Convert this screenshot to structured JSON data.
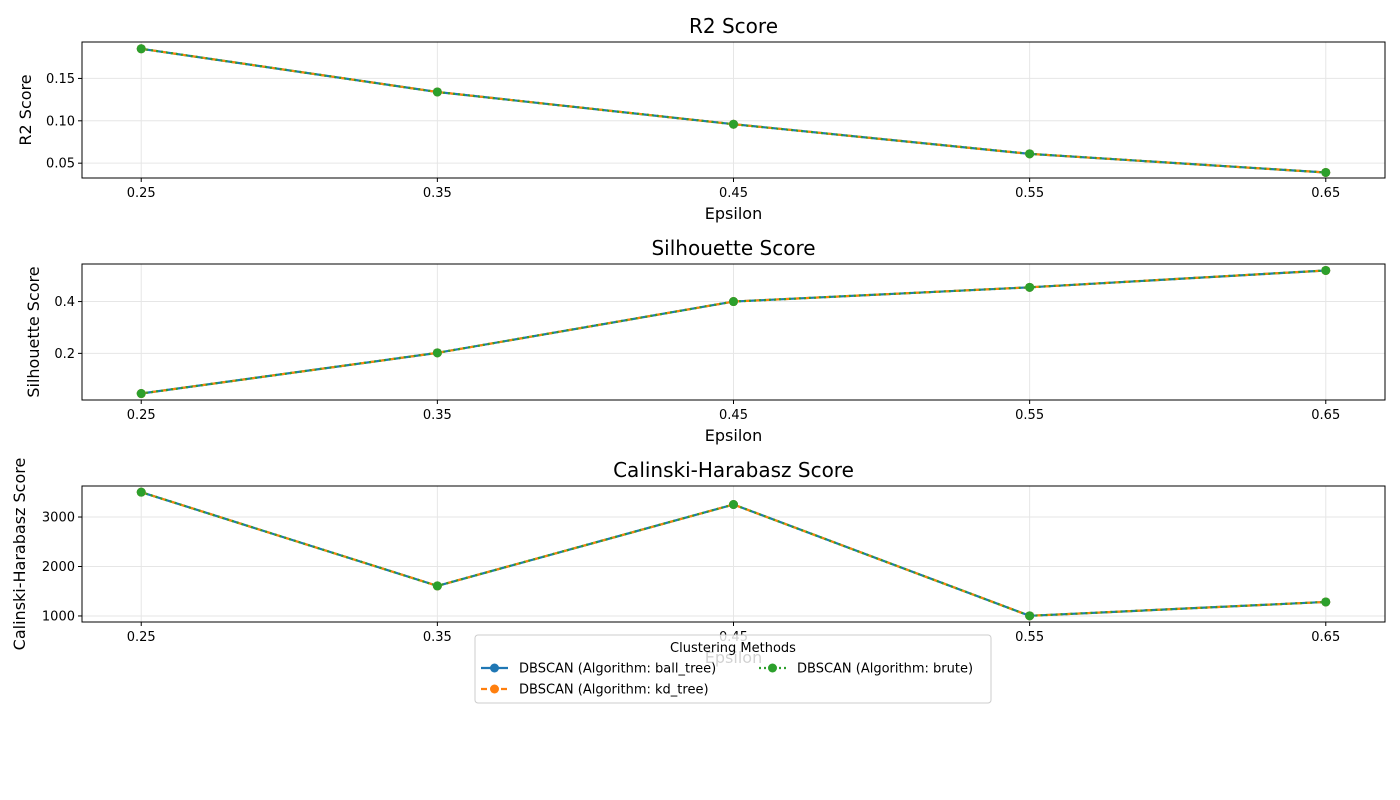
{
  "chart_data": [
    {
      "type": "line",
      "title": "R2 Score",
      "xlabel": "Epsilon",
      "ylabel": "R2 Score",
      "x": [
        0.25,
        0.35,
        0.45,
        0.55,
        0.65
      ],
      "x_ticks": [
        "0.25",
        "0.35",
        "0.45",
        "0.55",
        "0.65"
      ],
      "xlim": [
        0.23,
        0.67
      ],
      "ylim": [
        0.0325,
        0.193
      ],
      "y_ticks": [
        "0.05",
        "0.10",
        "0.15"
      ],
      "grid": true,
      "series": [
        {
          "name": "DBSCAN (Algorithm: ball_tree)",
          "values": [
            0.185,
            0.134,
            0.096,
            0.061,
            0.039
          ]
        },
        {
          "name": "DBSCAN (Algorithm: kd_tree)",
          "values": [
            0.185,
            0.134,
            0.096,
            0.061,
            0.039
          ]
        },
        {
          "name": "DBSCAN (Algorithm: brute)",
          "values": [
            0.185,
            0.134,
            0.096,
            0.061,
            0.039
          ]
        }
      ]
    },
    {
      "type": "line",
      "title": "Silhouette Score",
      "xlabel": "Epsilon",
      "ylabel": "Silhouette Score",
      "x": [
        0.25,
        0.35,
        0.45,
        0.55,
        0.65
      ],
      "x_ticks": [
        "0.25",
        "0.35",
        "0.45",
        "0.55",
        "0.65"
      ],
      "xlim": [
        0.23,
        0.67
      ],
      "ylim": [
        0.02,
        0.545
      ],
      "y_ticks": [
        "0.2",
        "0.4"
      ],
      "grid": true,
      "series": [
        {
          "name": "DBSCAN (Algorithm: ball_tree)",
          "values": [
            0.045,
            0.202,
            0.4,
            0.455,
            0.52
          ]
        },
        {
          "name": "DBSCAN (Algorithm: kd_tree)",
          "values": [
            0.045,
            0.202,
            0.4,
            0.455,
            0.52
          ]
        },
        {
          "name": "DBSCAN (Algorithm: brute)",
          "values": [
            0.045,
            0.202,
            0.4,
            0.455,
            0.52
          ]
        }
      ]
    },
    {
      "type": "line",
      "title": "Calinski-Harabasz Score",
      "xlabel": "Epsilon",
      "ylabel": "Calinski-Harabasz Score",
      "x": [
        0.25,
        0.35,
        0.45,
        0.55,
        0.65
      ],
      "x_ticks": [
        "0.25",
        "0.35",
        "0.45",
        "0.55",
        "0.65"
      ],
      "xlim": [
        0.23,
        0.67
      ],
      "ylim": [
        878,
        3627
      ],
      "y_ticks": [
        "1000",
        "2000",
        "3000"
      ],
      "grid": true,
      "series": [
        {
          "name": "DBSCAN (Algorithm: ball_tree)",
          "values": [
            3502,
            1608,
            3253,
            1003,
            1283
          ]
        },
        {
          "name": "DBSCAN (Algorithm: kd_tree)",
          "values": [
            3502,
            1608,
            3253,
            1003,
            1283
          ]
        },
        {
          "name": "DBSCAN (Algorithm: brute)",
          "values": [
            3502,
            1608,
            3253,
            1003,
            1283
          ]
        }
      ]
    }
  ],
  "legend": {
    "title": "Clustering Methods",
    "placement": "bottom-center",
    "entries": [
      {
        "label": "DBSCAN (Algorithm: ball_tree)",
        "color": "#1f77b4",
        "style": "solid"
      },
      {
        "label": "DBSCAN (Algorithm: kd_tree)",
        "color": "#ff7f0e",
        "style": "dashed"
      },
      {
        "label": "DBSCAN (Algorithm: brute)",
        "color": "#2ca02c",
        "style": "dotted"
      }
    ]
  }
}
